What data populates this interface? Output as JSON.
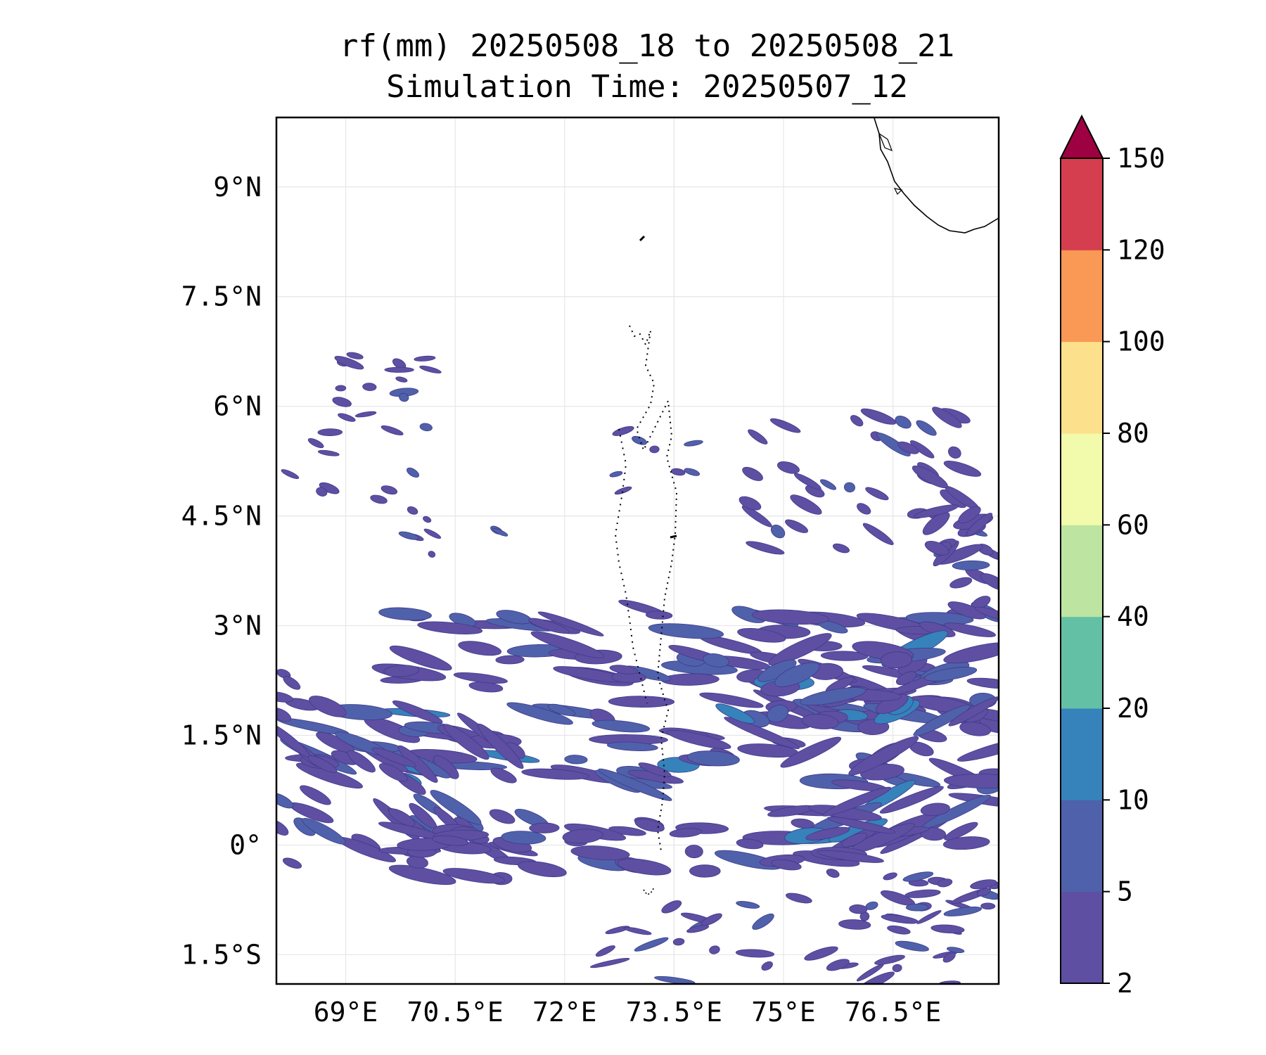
{
  "title": {
    "line1": "rf(mm) 20250508_18 to 20250508_21",
    "line2": "Simulation Time: 20250507_12"
  },
  "map": {
    "lon_range": [
      68.05,
      77.95
    ],
    "lat_range": [
      -1.9,
      9.95
    ],
    "lon_ticks": [
      {
        "value": 69.0,
        "label": "69°E"
      },
      {
        "value": 70.5,
        "label": "70.5°E"
      },
      {
        "value": 72.0,
        "label": "72°E"
      },
      {
        "value": 73.5,
        "label": "73.5°E"
      },
      {
        "value": 75.0,
        "label": "75°E"
      },
      {
        "value": 76.5,
        "label": "76.5°E"
      }
    ],
    "lat_ticks": [
      {
        "value": 9.0,
        "label": "9°N"
      },
      {
        "value": 7.5,
        "label": "7.5°N"
      },
      {
        "value": 6.0,
        "label": "6°N"
      },
      {
        "value": 4.5,
        "label": "4.5°N"
      },
      {
        "value": 3.0,
        "label": "3°N"
      },
      {
        "value": 1.5,
        "label": "1.5°N"
      },
      {
        "value": 0.0,
        "label": "0°"
      },
      {
        "value": -1.5,
        "label": "1.5°S"
      }
    ],
    "grid": true
  },
  "colorbar": {
    "levels": [
      2,
      5,
      10,
      20,
      40,
      60,
      80,
      100,
      120,
      150
    ],
    "labels": [
      "2",
      "5",
      "10",
      "20",
      "40",
      "60",
      "80",
      "100",
      "120",
      "150"
    ],
    "colors": [
      "#5e4fa2",
      "#4f61aa",
      "#3682ba",
      "#63c0a4",
      "#bde4a0",
      "#f2faac",
      "#fde08b",
      "#fa9856",
      "#d53e4f"
    ],
    "extend_color": "#9e0142",
    "extend": "max"
  },
  "colors": {
    "rain_low": "#5e4fa2",
    "rain_mid": "#4f61aa",
    "rain_high": "#3682ba",
    "rain_peak": "#63c0a4",
    "coastline": "#000000"
  }
}
